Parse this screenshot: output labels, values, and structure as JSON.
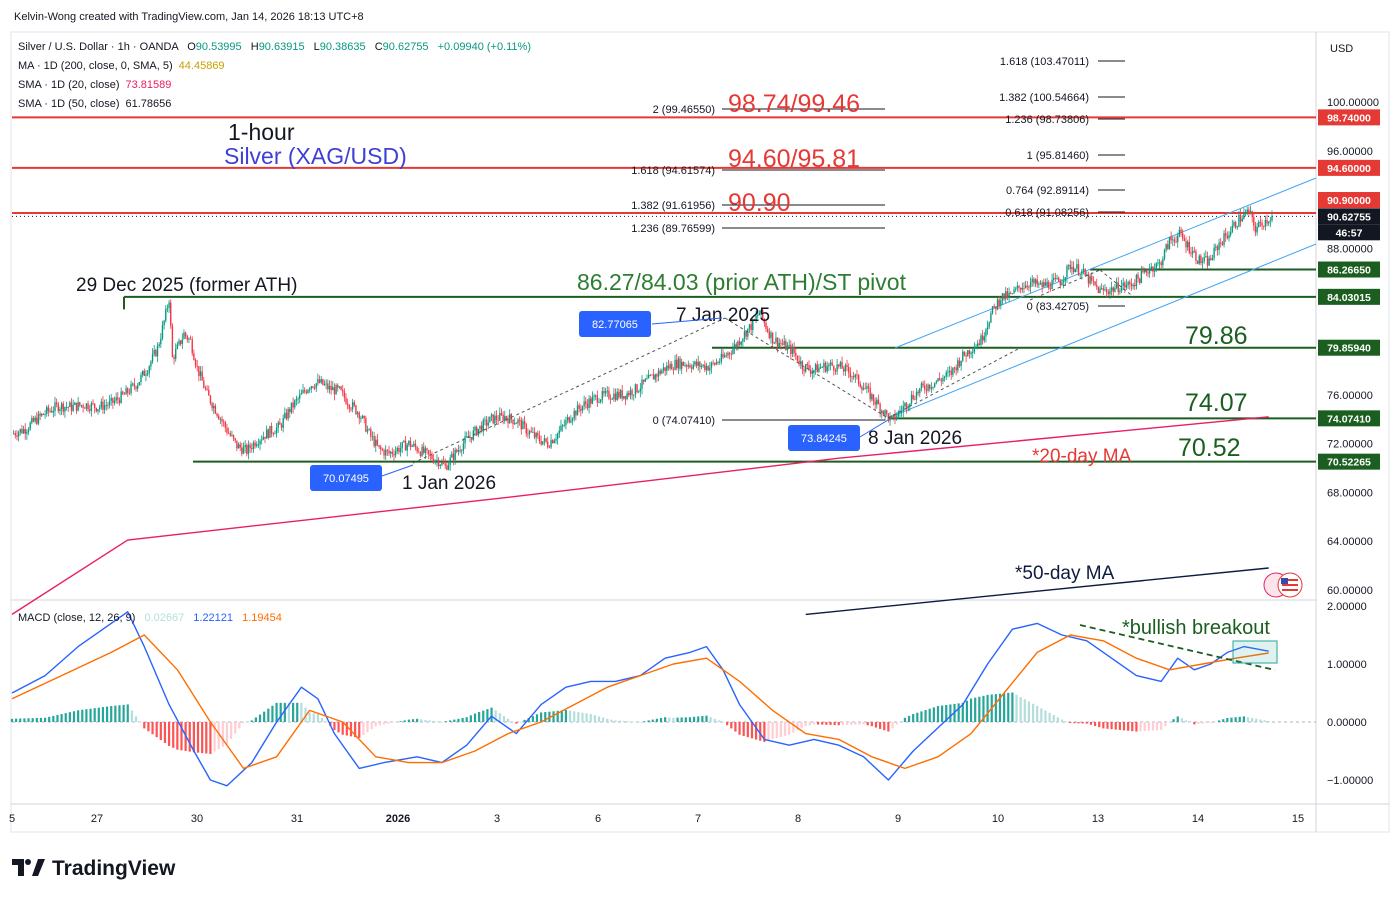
{
  "header": {
    "credit": "Kelvin-Wong created with TradingView.com, Jan 14, 2026 18:13 UTC+8"
  },
  "legend": {
    "symbol": "Silver / U.S. Dollar · 1h · OANDA",
    "o_label": "O",
    "o_value": "90.53995",
    "h_label": "H",
    "h_value": "90.63915",
    "l_label": "L",
    "l_value": "90.38635",
    "c_label": "C",
    "c_value": "90.62755",
    "change": "+0.09940 (+0.11%)",
    "ma200_label": "MA · 1D (200, close, 0, SMA, 5)",
    "ma200_value": "44.45869",
    "sma20_label": "SMA · 1D (20, close)",
    "sma20_value": "73.81589",
    "sma50_label": "SMA · 1D (50, close)",
    "sma50_value": "61.78656"
  },
  "colors": {
    "up": "#089981",
    "down": "#f23645",
    "resistance": "#e53935",
    "support": "#1b5e20",
    "annotation_green": "#2e7d32",
    "annotation_red": "#e53935",
    "annotation_blue": "#3f3fd6",
    "macd_line": "#2962ff",
    "signal_line": "#ff6d00",
    "channel": "#42a5f5",
    "ma20": "#e91e63",
    "ma50": "#0d1b3e",
    "label_blue": "#2962ff"
  },
  "axis": {
    "currency": "USD",
    "price_ticks": [
      "100.00000",
      "96.00000",
      "88.00000",
      "76.00000",
      "72.00000",
      "68.00000",
      "64.00000",
      "60.00000"
    ],
    "time_ticks": [
      "5",
      "27",
      "30",
      "31",
      "2026",
      "3",
      "6",
      "7",
      "8",
      "9",
      "10",
      "13",
      "14",
      "15"
    ],
    "macd_ticks": [
      "2.00000",
      "1.00000",
      "0.00000",
      "−1.00000"
    ],
    "price_badges": [
      {
        "text": "98.74000",
        "kind": "red"
      },
      {
        "text": "94.60000",
        "kind": "red"
      },
      {
        "text": "90.90000",
        "kind": "red"
      },
      {
        "text": "90.62755",
        "kind": "dark"
      },
      {
        "text": "46:57",
        "kind": "dark"
      },
      {
        "text": "86.26650",
        "kind": "green"
      },
      {
        "text": "84.03015",
        "kind": "green"
      },
      {
        "text": "79.85940",
        "kind": "green"
      },
      {
        "text": "74.07410",
        "kind": "green"
      },
      {
        "text": "70.52265",
        "kind": "green"
      }
    ]
  },
  "annotations": {
    "timeframe": "1-hour",
    "instrument": "Silver (XAG/USD)",
    "res1": "98.74/99.46",
    "res2": "94.60/95.81",
    "res3": "90.90",
    "pivot": "86.27/84.03 (prior ATH)/ST pivot",
    "former_ath": "29 Dec 2025 (former ATH)",
    "s1": "79.86",
    "s2": "74.07",
    "s3": "70.52",
    "ma20": "*20-day MA",
    "ma50": "*50-day MA",
    "jan7": "7 Jan 2025",
    "jan8": "8 Jan 2026",
    "jan1": "1 Jan 2026",
    "label_high": "82.77065",
    "label_low1": "70.07495",
    "label_low2": "73.84245",
    "bullish": "*bullish breakout"
  },
  "fib_left": [
    "2 (99.46550)",
    "1.618 (94.61574)",
    "1.382 (91.61956)",
    "1.236 (89.76599)",
    "0 (74.07410)"
  ],
  "fib_right": [
    "1.618 (103.47011)",
    "1.382 (100.54664)",
    "1.236 (98.73806)",
    "1 (95.81460)",
    "0.764 (92.89114)",
    "0.618 (91.08256)",
    "0 (83.42705)"
  ],
  "macd_legend": {
    "label": "MACD (close, 12, 26, 9)",
    "hist": "0.02667",
    "macd": "1.22121",
    "signal": "1.19454"
  },
  "footer": {
    "brand": "TradingView"
  },
  "chart_data": {
    "type": "candlestick",
    "title": "Silver / U.S. Dollar · 1h · OANDA",
    "ylim": [
      58.5,
      106.5
    ],
    "y_ticks": [
      100,
      96,
      88,
      76,
      72,
      68,
      64,
      60
    ],
    "x_ticks": [
      "5",
      "27",
      "30",
      "31",
      "2026",
      "3",
      "6",
      "7",
      "8",
      "9",
      "10",
      "13",
      "14",
      "15"
    ],
    "series_price_path": [
      [
        0,
        72.8
      ],
      [
        8,
        73.2
      ],
      [
        15,
        74.0
      ],
      [
        20,
        74.5
      ],
      [
        28,
        75.1
      ],
      [
        36,
        75.0
      ],
      [
        44,
        75.2
      ],
      [
        52,
        75.0
      ],
      [
        60,
        75.3
      ],
      [
        68,
        76.0
      ],
      [
        76,
        77.0
      ],
      [
        82,
        78.2
      ],
      [
        88,
        79.8
      ],
      [
        92,
        82.0
      ],
      [
        95,
        83.9
      ],
      [
        97,
        79.0
      ],
      [
        100,
        79.8
      ],
      [
        104,
        81.0
      ],
      [
        108,
        80.4
      ],
      [
        112,
        78.2
      ],
      [
        118,
        76.0
      ],
      [
        124,
        74.6
      ],
      [
        130,
        73.1
      ],
      [
        136,
        71.8
      ],
      [
        142,
        71.4
      ],
      [
        148,
        72.3
      ],
      [
        156,
        73.0
      ],
      [
        162,
        73.4
      ],
      [
        168,
        74.8
      ],
      [
        174,
        75.8
      ],
      [
        180,
        76.8
      ],
      [
        186,
        77.0
      ],
      [
        192,
        76.5
      ],
      [
        198,
        76.3
      ],
      [
        204,
        75.3
      ],
      [
        210,
        74.5
      ],
      [
        216,
        72.8
      ],
      [
        222,
        71.5
      ],
      [
        228,
        71.2
      ],
      [
        234,
        71.6
      ],
      [
        240,
        72.0
      ],
      [
        246,
        71.5
      ],
      [
        252,
        71.0
      ],
      [
        258,
        70.6
      ],
      [
        262,
        70.1
      ],
      [
        268,
        71.2
      ],
      [
        274,
        72.2
      ],
      [
        282,
        73.2
      ],
      [
        290,
        74.0
      ],
      [
        298,
        74.2
      ],
      [
        306,
        73.8
      ],
      [
        312,
        73.0
      ],
      [
        318,
        72.4
      ],
      [
        324,
        72.0
      ],
      [
        330,
        72.8
      ],
      [
        338,
        74.3
      ],
      [
        346,
        75.2
      ],
      [
        354,
        75.8
      ],
      [
        362,
        76.0
      ],
      [
        370,
        76.0
      ],
      [
        378,
        76.5
      ],
      [
        386,
        77.3
      ],
      [
        394,
        78.1
      ],
      [
        402,
        78.6
      ],
      [
        410,
        78.5
      ],
      [
        416,
        78.4
      ],
      [
        422,
        78.3
      ],
      [
        430,
        79.0
      ],
      [
        438,
        80.1
      ],
      [
        444,
        81.2
      ],
      [
        448,
        81.8
      ],
      [
        452,
        82.77
      ],
      [
        456,
        81.6
      ],
      [
        460,
        80.6
      ],
      [
        466,
        80.1
      ],
      [
        472,
        79.6
      ],
      [
        478,
        78.4
      ],
      [
        484,
        78.0
      ],
      [
        490,
        78.3
      ],
      [
        496,
        78.4
      ],
      [
        502,
        78.2
      ],
      [
        508,
        77.7
      ],
      [
        514,
        76.8
      ],
      [
        520,
        75.8
      ],
      [
        526,
        74.8
      ],
      [
        532,
        73.84
      ],
      [
        538,
        74.8
      ],
      [
        544,
        75.8
      ],
      [
        550,
        76.5
      ],
      [
        556,
        76.9
      ],
      [
        562,
        77.3
      ],
      [
        568,
        77.8
      ],
      [
        574,
        79.0
      ],
      [
        580,
        79.8
      ],
      [
        586,
        80.5
      ],
      [
        592,
        82.6
      ],
      [
        598,
        84.0
      ],
      [
        604,
        84.1
      ],
      [
        610,
        84.9
      ],
      [
        616,
        85.2
      ],
      [
        622,
        84.9
      ],
      [
        628,
        85.1
      ],
      [
        634,
        85.3
      ],
      [
        640,
        86.6
      ],
      [
        646,
        86.2
      ],
      [
        652,
        85.3
      ],
      [
        658,
        84.5
      ],
      [
        664,
        84.6
      ],
      [
        670,
        84.9
      ],
      [
        676,
        85.0
      ],
      [
        682,
        85.6
      ],
      [
        688,
        86.4
      ],
      [
        694,
        86.7
      ],
      [
        700,
        88.6
      ],
      [
        706,
        89.1
      ],
      [
        712,
        88.1
      ],
      [
        718,
        87.0
      ],
      [
        724,
        86.9
      ],
      [
        730,
        88.4
      ],
      [
        736,
        89.3
      ],
      [
        742,
        90.4
      ],
      [
        748,
        91.0
      ],
      [
        752,
        89.6
      ],
      [
        756,
        90.1
      ],
      [
        762,
        90.63
      ]
    ],
    "x_range": [
      0,
      762
    ],
    "levels": [
      {
        "label": "98.74",
        "value": 98.74,
        "kind": "resistance"
      },
      {
        "label": "94.60",
        "value": 94.6,
        "kind": "resistance"
      },
      {
        "label": "90.90",
        "value": 90.9,
        "kind": "resistance"
      },
      {
        "label": "86.27",
        "value": 86.27,
        "kind": "support"
      },
      {
        "label": "84.03",
        "value": 84.03,
        "kind": "support"
      },
      {
        "label": "79.86",
        "value": 79.86,
        "kind": "support"
      },
      {
        "label": "74.07",
        "value": 74.07,
        "kind": "support"
      },
      {
        "label": "70.52",
        "value": 70.52,
        "kind": "support"
      }
    ],
    "ma20": [
      [
        0,
        58.0
      ],
      [
        70,
        64.1
      ],
      [
        300,
        67.6
      ],
      [
        500,
        70.8
      ],
      [
        760,
        74.2
      ]
    ],
    "ma50": [
      [
        480,
        58.0
      ],
      [
        760,
        61.8
      ]
    ],
    "macd_ylim": [
      -1.5,
      2.0
    ],
    "macd_line": [
      [
        0,
        0.5
      ],
      [
        20,
        0.8
      ],
      [
        40,
        1.3
      ],
      [
        55,
        1.6
      ],
      [
        70,
        1.9
      ],
      [
        80,
        1.3
      ],
      [
        95,
        0.3
      ],
      [
        110,
        -0.5
      ],
      [
        120,
        -1.0
      ],
      [
        130,
        -1.1
      ],
      [
        145,
        -0.7
      ],
      [
        160,
        0.0
      ],
      [
        175,
        0.6
      ],
      [
        185,
        0.4
      ],
      [
        195,
        -0.2
      ],
      [
        210,
        -0.8
      ],
      [
        225,
        -0.7
      ],
      [
        245,
        -0.6
      ],
      [
        260,
        -0.7
      ],
      [
        275,
        -0.4
      ],
      [
        290,
        0.1
      ],
      [
        305,
        -0.2
      ],
      [
        320,
        0.3
      ],
      [
        335,
        0.6
      ],
      [
        350,
        0.7
      ],
      [
        365,
        0.7
      ],
      [
        380,
        0.8
      ],
      [
        395,
        1.1
      ],
      [
        410,
        1.2
      ],
      [
        420,
        1.3
      ],
      [
        430,
        0.9
      ],
      [
        440,
        0.3
      ],
      [
        455,
        -0.3
      ],
      [
        470,
        -0.4
      ],
      [
        485,
        -0.3
      ],
      [
        500,
        -0.4
      ],
      [
        515,
        -0.6
      ],
      [
        530,
        -1.0
      ],
      [
        545,
        -0.5
      ],
      [
        560,
        -0.1
      ],
      [
        575,
        0.3
      ],
      [
        590,
        1.0
      ],
      [
        605,
        1.6
      ],
      [
        620,
        1.7
      ],
      [
        635,
        1.5
      ],
      [
        650,
        1.4
      ],
      [
        665,
        1.1
      ],
      [
        680,
        0.8
      ],
      [
        695,
        0.7
      ],
      [
        705,
        1.1
      ],
      [
        715,
        0.9
      ],
      [
        725,
        1.0
      ],
      [
        735,
        1.2
      ],
      [
        745,
        1.3
      ],
      [
        760,
        1.22
      ]
    ],
    "signal_line": [
      [
        0,
        0.4
      ],
      [
        30,
        0.8
      ],
      [
        60,
        1.2
      ],
      [
        80,
        1.5
      ],
      [
        100,
        0.9
      ],
      [
        120,
        0.0
      ],
      [
        140,
        -0.8
      ],
      [
        160,
        -0.6
      ],
      [
        180,
        0.2
      ],
      [
        200,
        0.0
      ],
      [
        220,
        -0.6
      ],
      [
        240,
        -0.7
      ],
      [
        260,
        -0.7
      ],
      [
        280,
        -0.5
      ],
      [
        300,
        -0.2
      ],
      [
        320,
        0.0
      ],
      [
        340,
        0.3
      ],
      [
        360,
        0.6
      ],
      [
        380,
        0.8
      ],
      [
        400,
        1.0
      ],
      [
        420,
        1.1
      ],
      [
        440,
        0.7
      ],
      [
        460,
        0.2
      ],
      [
        480,
        -0.2
      ],
      [
        500,
        -0.3
      ],
      [
        520,
        -0.6
      ],
      [
        540,
        -0.8
      ],
      [
        560,
        -0.6
      ],
      [
        580,
        -0.2
      ],
      [
        600,
        0.5
      ],
      [
        620,
        1.2
      ],
      [
        640,
        1.5
      ],
      [
        660,
        1.4
      ],
      [
        680,
        1.1
      ],
      [
        700,
        0.9
      ],
      [
        720,
        1.0
      ],
      [
        740,
        1.1
      ],
      [
        760,
        1.19
      ]
    ]
  }
}
